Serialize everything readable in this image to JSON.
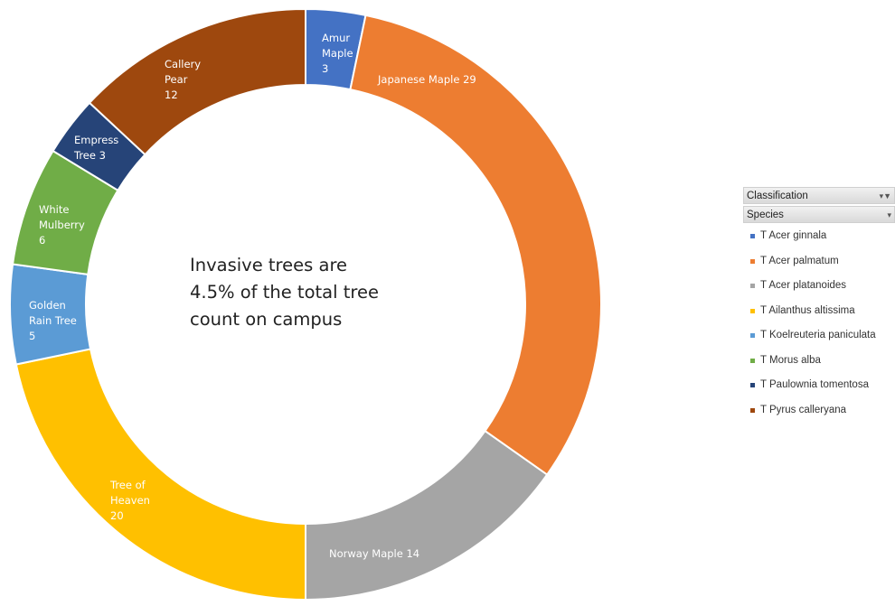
{
  "chart_data": {
    "type": "pie",
    "donut": true,
    "slices": [
      {
        "label": "Amur Maple 3",
        "label_lines": [
          "Amur",
          "Maple",
          "3"
        ],
        "value": 3,
        "color": "#4472C4"
      },
      {
        "label": "Japanese Maple 29",
        "label_lines": [
          "Japanese Maple 29"
        ],
        "value": 29,
        "color": "#ED7D31"
      },
      {
        "label": "Norway Maple 14",
        "label_lines": [
          "Norway Maple 14"
        ],
        "value": 14,
        "color": "#A5A5A5"
      },
      {
        "label": "Tree of Heaven 20",
        "label_lines": [
          "Tree of",
          "Heaven",
          "20"
        ],
        "value": 20,
        "color": "#FFC000"
      },
      {
        "label": "Golden Rain Tree 5",
        "label_lines": [
          "Golden",
          "Rain Tree",
          "5"
        ],
        "value": 5,
        "color": "#5B9BD5"
      },
      {
        "label": "White Mulberry 6",
        "label_lines": [
          "White",
          "Mulberry",
          "6"
        ],
        "value": 6,
        "color": "#70AD47"
      },
      {
        "label": "Empress Tree 3",
        "label_lines": [
          "Empress",
          "Tree 3"
        ],
        "value": 3,
        "color": "#264478"
      },
      {
        "label": "Callery Pear 12",
        "label_lines": [
          "Callery",
          "Pear",
          "12"
        ],
        "value": 12,
        "color": "#9E480E"
      }
    ],
    "center_text": [
      "Invasive trees are",
      "4.5% of the total tree",
      "count on campus"
    ],
    "legend_position": "right",
    "legend": {
      "field_buttons": [
        {
          "label": "Classification",
          "icon": "filter-dropdown-icon"
        },
        {
          "label": "Species",
          "icon": "dropdown-arrow-icon"
        }
      ],
      "entries": [
        {
          "label": "T Acer ginnala",
          "color": "#4472C4"
        },
        {
          "label": "T Acer palmatum",
          "color": "#ED7D31"
        },
        {
          "label": "T Acer platanoides",
          "color": "#A5A5A5"
        },
        {
          "label": "T Ailanthus altissima",
          "color": "#FFC000"
        },
        {
          "label": "T Koelreuteria paniculata",
          "color": "#5B9BD5"
        },
        {
          "label": "T Morus alba",
          "color": "#70AD47"
        },
        {
          "label": "T Paulownia tomentosa",
          "color": "#264478"
        },
        {
          "label": "T Pyrus calleryana",
          "color": "#9E480E"
        }
      ]
    }
  }
}
